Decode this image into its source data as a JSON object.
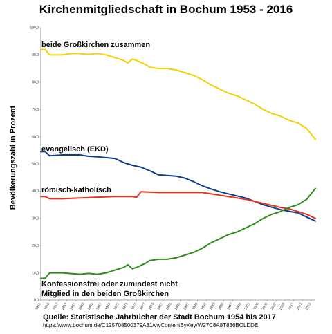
{
  "title": "Kirchenmitgliedschaft in Bochum 1953 - 2016",
  "source_line": "Quelle: Statistische Jahrbücher der Stadt Bochum 1954 bis 2017",
  "source_url": "https://www.bochum.de/C125708500379A31/vwContentByKey/W27C8A8T836BOLDDE",
  "chart_data": {
    "type": "line",
    "title": "Kirchenmitgliedschaft in Bochum 1953 - 2016",
    "xlabel": "",
    "ylabel": "Bevölkerungszahl in Prozent",
    "ylim": [
      0,
      100
    ],
    "xlim": [
      1953,
      2016
    ],
    "grid": false,
    "y_ticks": [
      "0,0",
      "10,0",
      "20,0",
      "30,0",
      "40,0",
      "50,0",
      "60,0",
      "70,0",
      "80,0",
      "90,0",
      "100,0"
    ],
    "x_ticks": [
      "1953",
      "1955",
      "1957",
      "1959",
      "1961",
      "1963",
      "1965",
      "1967",
      "1969",
      "1971",
      "1973",
      "1975",
      "1977",
      "1979",
      "1981",
      "1983",
      "1985",
      "1987",
      "1989",
      "1991",
      "1993",
      "1995",
      "1997",
      "1999",
      "2001",
      "2003",
      "2005",
      "2007",
      "2009",
      "2011",
      "2013",
      "2015"
    ],
    "series": [
      {
        "name": "beide Großkirchen zusammen",
        "color": "#F5D000",
        "x": [
          1953,
          1954,
          1955,
          1958,
          1960,
          1962,
          1964,
          1966,
          1968,
          1970,
          1972,
          1973,
          1974,
          1975,
          1977,
          1978,
          1980,
          1982,
          1984,
          1986,
          1988,
          1990,
          1992,
          1994,
          1996,
          1998,
          2000,
          2002,
          2004,
          2006,
          2008,
          2010,
          2012,
          2014,
          2016
        ],
        "values": [
          92.0,
          92.0,
          90.0,
          90.0,
          90.5,
          90.5,
          90.2,
          90.5,
          90.0,
          89.0,
          88.0,
          87.0,
          88.5,
          88.0,
          86.5,
          85.5,
          85.0,
          85.0,
          84.5,
          83.5,
          82.5,
          81.0,
          79.0,
          77.5,
          76.0,
          75.0,
          73.5,
          72.0,
          70.0,
          68.5,
          67.5,
          66.0,
          65.0,
          63.0,
          59.0
        ]
      },
      {
        "name": "evangelisch (EKD)",
        "color": "#0D3E8E",
        "x": [
          1953,
          1954,
          1955,
          1958,
          1962,
          1964,
          1966,
          1970,
          1972,
          1974,
          1976,
          1978,
          1980,
          1984,
          1986,
          1988,
          1990,
          1992,
          1994,
          1996,
          2000,
          2004,
          2008,
          2010,
          2012,
          2014,
          2016
        ],
        "values": [
          54.5,
          54.5,
          53.0,
          53.3,
          53.3,
          52.8,
          52.6,
          52.0,
          50.5,
          49.5,
          48.8,
          47.5,
          46.0,
          45.5,
          44.8,
          43.5,
          42.0,
          40.8,
          39.8,
          39.0,
          37.5,
          35.0,
          33.2,
          32.6,
          32.0,
          30.5,
          29.0
        ]
      },
      {
        "name": "römisch-katholisch",
        "color": "#E8321E",
        "x": [
          1953,
          1954,
          1955,
          1958,
          1962,
          1966,
          1970,
          1974,
          1975,
          1976,
          1980,
          1984,
          1988,
          1990,
          1992,
          1994,
          1996,
          2000,
          2004,
          2008,
          2010,
          2012,
          2014,
          2016
        ],
        "values": [
          38.0,
          38.0,
          37.2,
          37.2,
          37.5,
          37.8,
          38.0,
          38.0,
          37.8,
          39.8,
          39.5,
          39.5,
          39.5,
          39.5,
          39.0,
          38.5,
          38.0,
          37.0,
          35.5,
          34.0,
          33.5,
          32.5,
          31.5,
          30.0
        ]
      },
      {
        "name": "Konfessionsfrei oder zumindest nicht Mitglied in den beiden Großkirchen",
        "color": "#2E8B1C",
        "x": [
          1953,
          1954,
          1955,
          1958,
          1962,
          1964,
          1966,
          1968,
          1970,
          1972,
          1973,
          1974,
          1975,
          1977,
          1978,
          1980,
          1982,
          1984,
          1986,
          1988,
          1990,
          1992,
          1994,
          1996,
          1998,
          2000,
          2002,
          2004,
          2006,
          2008,
          2010,
          2012,
          2014,
          2016
        ],
        "values": [
          8.0,
          8.0,
          10.0,
          10.0,
          9.5,
          9.8,
          9.5,
          10.0,
          11.0,
          12.0,
          13.0,
          11.5,
          12.0,
          13.5,
          14.5,
          15.0,
          15.0,
          15.5,
          16.5,
          17.5,
          19.0,
          21.0,
          22.5,
          24.0,
          25.0,
          26.5,
          28.0,
          30.0,
          31.5,
          32.5,
          34.0,
          35.0,
          37.0,
          41.0
        ]
      }
    ],
    "annotations": [
      {
        "series": 0,
        "lines": [
          "beide Großkirchen zusammen"
        ]
      },
      {
        "series": 1,
        "lines": [
          "evangelisch (EKD)"
        ]
      },
      {
        "series": 2,
        "lines": [
          "römisch-katholisch"
        ]
      },
      {
        "series": 3,
        "lines": [
          "Konfessionsfrei oder zumindest nicht",
          "Mitglied in den beiden Großkirchen"
        ]
      }
    ]
  }
}
